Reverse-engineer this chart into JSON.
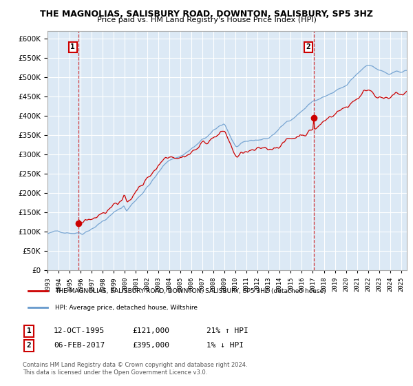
{
  "title": "THE MAGNOLIAS, SALISBURY ROAD, DOWNTON, SALISBURY, SP5 3HZ",
  "subtitle": "Price paid vs. HM Land Registry's House Price Index (HPI)",
  "legend_line1": "THE MAGNOLIAS, SALISBURY ROAD, DOWNTON, SALISBURY, SP5 3HZ (detached house)",
  "legend_line2": "HPI: Average price, detached house, Wiltshire",
  "annotation1_label": "1",
  "annotation1_date": "12-OCT-1995",
  "annotation1_price": "£121,000",
  "annotation1_hpi": "21% ↑ HPI",
  "annotation2_label": "2",
  "annotation2_date": "06-FEB-2017",
  "annotation2_price": "£395,000",
  "annotation2_hpi": "1% ↓ HPI",
  "footer": "Contains HM Land Registry data © Crown copyright and database right 2024.\nThis data is licensed under the Open Government Licence v3.0.",
  "red_color": "#cc0000",
  "blue_color": "#6699cc",
  "bg_color": "#dce9f5",
  "grid_color": "#ffffff",
  "ylim_min": 0,
  "ylim_max": 620000,
  "xlim_min": 1993.5,
  "xlim_max": 2025.5,
  "sale1_year": 1995.79,
  "sale1_price": 121000,
  "sale2_year": 2017.09,
  "sale2_price": 395000
}
